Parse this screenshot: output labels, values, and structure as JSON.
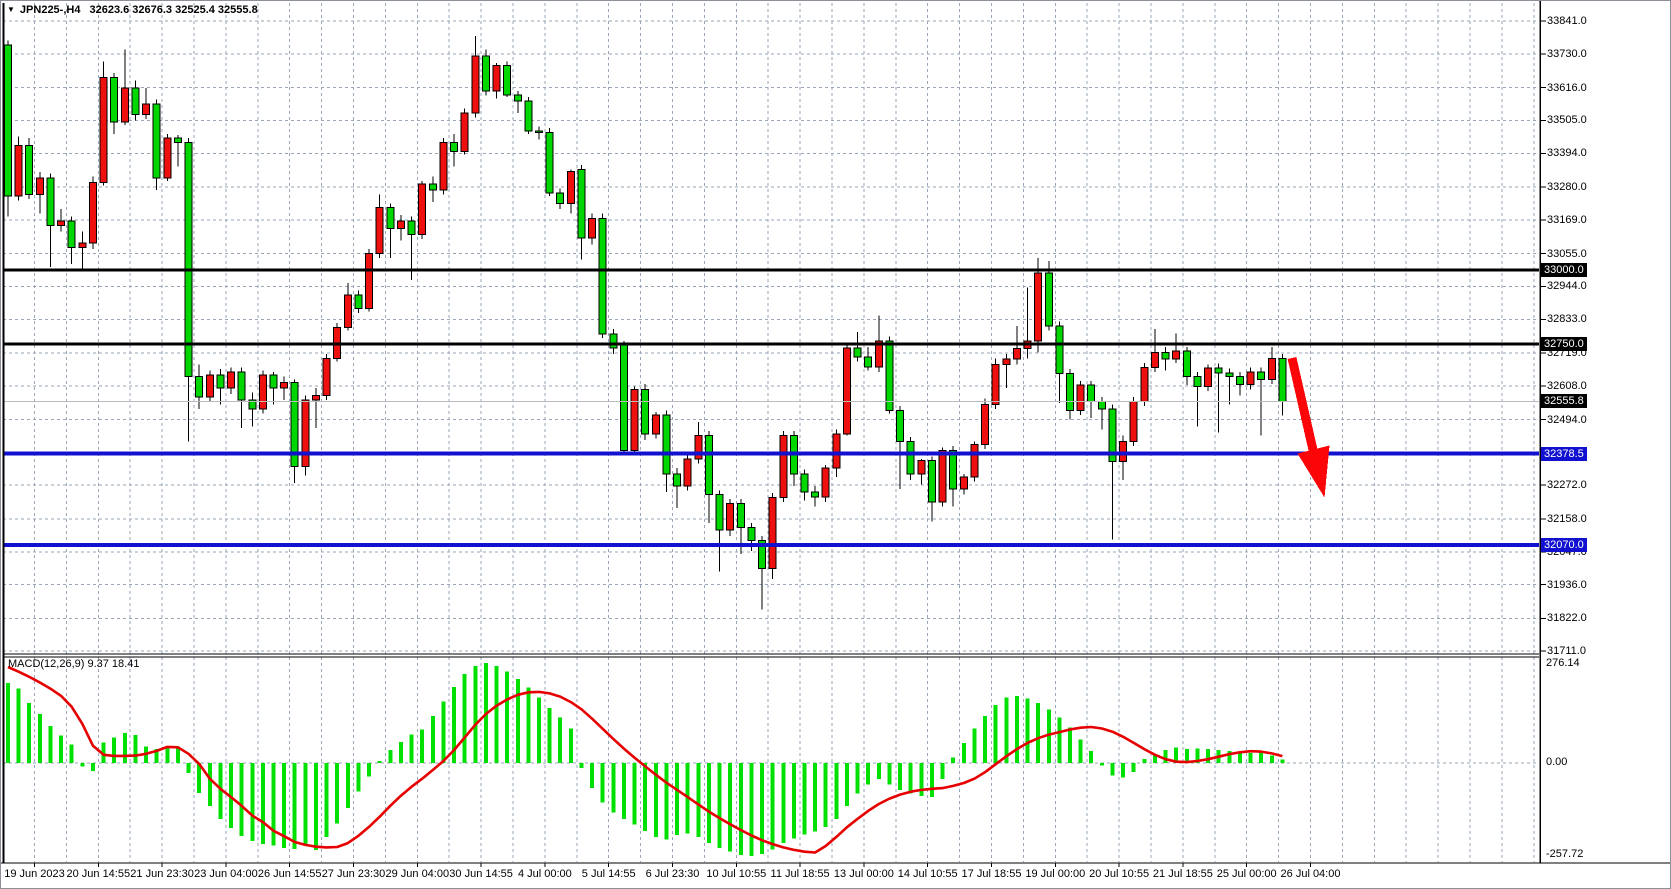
{
  "window": {
    "title_symbol": "JPN225-,H4",
    "title_ohlc": "32623.6 32676.3 32525.4 32555.8",
    "menu_icon": "symbol-dropdown-triangle"
  },
  "chart_data": {
    "type": "candlestick",
    "symbol": "JPN225-",
    "timeframe": "H4",
    "ohlc_display": {
      "open": 32623.6,
      "high": 32676.3,
      "low": 32525.4,
      "close": 32555.8
    },
    "up_color": "#ee0f0f",
    "down_color": "#00d600",
    "grid_color": "#9aa5b8",
    "price_range_visible": [
      31703,
      33902
    ],
    "x_labels": [
      "19 Jun 2023",
      "20 Jun 14:55",
      "21 Jun 23:30",
      "23 Jun 04:00",
      "26 Jun 14:55",
      "27 Jun 23:30",
      "29 Jun 04:00",
      "30 Jun 14:55",
      "4 Jul 00:00",
      "5 Jul 14:55",
      "6 Jul 23:30",
      "10 Jul 10:55",
      "11 Jul 18:55",
      "13 Jul 00:00",
      "14 Jul 10:55",
      "17 Jul 18:55",
      "19 Jul 00:00",
      "20 Jul 10:55",
      "21 Jul 18:55",
      "25 Jul 00:00",
      "26 Jul 04:00"
    ],
    "price_ticks": [
      {
        "p": 33841,
        "t": "33841.0"
      },
      {
        "p": 33730,
        "t": "33730.0"
      },
      {
        "p": 33616,
        "t": "33616.0"
      },
      {
        "p": 33505,
        "t": "33505.0"
      },
      {
        "p": 33394,
        "t": "33394.0"
      },
      {
        "p": 33280,
        "t": "33280.0"
      },
      {
        "p": 33169,
        "t": "33169.0"
      },
      {
        "p": 33055,
        "t": "33055.0"
      },
      {
        "p": 32944,
        "t": "32944.0"
      },
      {
        "p": 32833,
        "t": "32833.0"
      },
      {
        "p": 32719,
        "t": "32719.0"
      },
      {
        "p": 32608,
        "t": "32608.0"
      },
      {
        "p": 32494,
        "t": "32494.0"
      },
      {
        "p": 32272,
        "t": "32272.0"
      },
      {
        "p": 32158,
        "t": "32158.0"
      },
      {
        "p": 32047,
        "t": "32047.0"
      },
      {
        "p": 31936,
        "t": "31936.0"
      },
      {
        "p": 31822,
        "t": "31822.0"
      },
      {
        "p": 31711,
        "t": "31711.0"
      }
    ],
    "price_lines": [
      {
        "p": 33000.0,
        "t": "33000.0",
        "color": "#000000",
        "width": 3,
        "tag": "#000000"
      },
      {
        "p": 32750.0,
        "t": "32750.0",
        "color": "#000000",
        "width": 3,
        "tag": "#000000"
      },
      {
        "p": 32555.8,
        "t": "32555.8",
        "color": "#bcbcbc",
        "width": 1,
        "tag": "#000000"
      },
      {
        "p": 32378.5,
        "t": "32378.5",
        "color": "#1111cf",
        "width": 4,
        "tag": "#1111cf"
      },
      {
        "p": 32070.0,
        "t": "32070.0",
        "color": "#1111cf",
        "width": 4,
        "tag": "#1111cf"
      }
    ],
    "candles": [
      [
        33760,
        33775,
        33180,
        33250
      ],
      [
        33250,
        33450,
        33235,
        33420
      ],
      [
        33420,
        33445,
        33240,
        33255
      ],
      [
        33255,
        33330,
        33190,
        33310
      ],
      [
        33310,
        33325,
        33010,
        33150
      ],
      [
        33150,
        33205,
        33130,
        33165
      ],
      [
        33165,
        33180,
        33020,
        33075
      ],
      [
        33075,
        33130,
        32995,
        33090
      ],
      [
        33090,
        33315,
        33070,
        33295
      ],
      [
        33295,
        33705,
        33285,
        33650
      ],
      [
        33650,
        33665,
        33460,
        33500
      ],
      [
        33500,
        33745,
        33490,
        33615
      ],
      [
        33615,
        33640,
        33505,
        33525
      ],
      [
        33525,
        33615,
        33510,
        33560
      ],
      [
        33560,
        33575,
        33270,
        33310
      ],
      [
        33310,
        33460,
        33300,
        33445
      ],
      [
        33445,
        33455,
        33350,
        33430
      ],
      [
        33430,
        33445,
        32420,
        32640
      ],
      [
        32640,
        32680,
        32530,
        32570
      ],
      [
        32570,
        32660,
        32555,
        32645
      ],
      [
        32645,
        32665,
        32545,
        32600
      ],
      [
        32600,
        32670,
        32580,
        32655
      ],
      [
        32655,
        32670,
        32465,
        32560
      ],
      [
        32560,
        32585,
        32470,
        32530
      ],
      [
        32530,
        32660,
        32515,
        32645
      ],
      [
        32645,
        32655,
        32545,
        32600
      ],
      [
        32600,
        32640,
        32560,
        32620
      ],
      [
        32620,
        32630,
        32280,
        32335
      ],
      [
        32335,
        32575,
        32305,
        32560
      ],
      [
        32560,
        32600,
        32465,
        32575
      ],
      [
        32575,
        32715,
        32560,
        32700
      ],
      [
        32700,
        32820,
        32690,
        32805
      ],
      [
        32805,
        32955,
        32795,
        32915
      ],
      [
        32915,
        32930,
        32855,
        32870
      ],
      [
        32870,
        33070,
        32860,
        33055
      ],
      [
        33055,
        33255,
        33040,
        33210
      ],
      [
        33210,
        33225,
        33040,
        33140
      ],
      [
        33140,
        33185,
        33100,
        33165
      ],
      [
        33165,
        33180,
        32965,
        33120
      ],
      [
        33120,
        33300,
        33105,
        33290
      ],
      [
        33290,
        33315,
        33230,
        33270
      ],
      [
        33270,
        33445,
        33255,
        33430
      ],
      [
        33430,
        33460,
        33350,
        33400
      ],
      [
        33400,
        33545,
        33390,
        33530
      ],
      [
        33530,
        33790,
        33515,
        33723
      ],
      [
        33723,
        33745,
        33590,
        33605
      ],
      [
        33605,
        33700,
        33580,
        33690
      ],
      [
        33690,
        33705,
        33585,
        33591
      ],
      [
        33591,
        33605,
        33530,
        33570
      ],
      [
        33570,
        33585,
        33460,
        33470
      ],
      [
        33470,
        33485,
        33440,
        33465
      ],
      [
        33465,
        33480,
        33250,
        33260
      ],
      [
        33260,
        33275,
        33205,
        33225
      ],
      [
        33225,
        33340,
        33190,
        33333
      ],
      [
        33340,
        33355,
        33035,
        33107
      ],
      [
        33107,
        33190,
        33085,
        33174
      ],
      [
        33174,
        33190,
        32770,
        32783
      ],
      [
        32783,
        32800,
        32715,
        32736
      ],
      [
        32746,
        32760,
        32380,
        32390
      ],
      [
        32390,
        32605,
        32380,
        32595
      ],
      [
        32595,
        32615,
        32425,
        32445
      ],
      [
        32445,
        32520,
        32430,
        32510
      ],
      [
        32510,
        32525,
        32250,
        32310
      ],
      [
        32310,
        32330,
        32195,
        32270
      ],
      [
        32270,
        32375,
        32255,
        32360
      ],
      [
        32360,
        32485,
        32345,
        32440
      ],
      [
        32440,
        32455,
        32145,
        32240
      ],
      [
        32240,
        32255,
        31980,
        32120
      ],
      [
        32120,
        32225,
        32100,
        32210
      ],
      [
        32210,
        32225,
        32040,
        32130
      ],
      [
        32130,
        32145,
        32050,
        32085
      ],
      [
        32085,
        32100,
        31852,
        31990
      ],
      [
        31990,
        32245,
        31955,
        32230
      ],
      [
        32230,
        32455,
        32215,
        32440
      ],
      [
        32440,
        32455,
        32270,
        32310
      ],
      [
        32310,
        32325,
        32220,
        32250
      ],
      [
        32250,
        32270,
        32200,
        32232
      ],
      [
        32232,
        32340,
        32215,
        32330
      ],
      [
        32330,
        32460,
        32300,
        32445
      ],
      [
        32445,
        32750,
        32440,
        32736
      ],
      [
        32736,
        32790,
        32690,
        32705
      ],
      [
        32705,
        32740,
        32660,
        32672
      ],
      [
        32672,
        32845,
        32655,
        32760
      ],
      [
        32760,
        32775,
        32515,
        32525
      ],
      [
        32525,
        32540,
        32260,
        32420
      ],
      [
        32420,
        32435,
        32290,
        32310
      ],
      [
        32310,
        32360,
        32275,
        32355
      ],
      [
        32355,
        32370,
        32150,
        32215
      ],
      [
        32215,
        32400,
        32200,
        32390
      ],
      [
        32390,
        32405,
        32200,
        32260
      ],
      [
        32260,
        32310,
        32240,
        32300
      ],
      [
        32300,
        32420,
        32285,
        32410
      ],
      [
        32410,
        32565,
        32395,
        32545
      ],
      [
        32545,
        32700,
        32530,
        32680
      ],
      [
        32680,
        32715,
        32600,
        32699
      ],
      [
        32699,
        32811,
        32680,
        32735
      ],
      [
        32735,
        32940,
        32700,
        32760
      ],
      [
        32760,
        33040,
        32720,
        32990
      ],
      [
        32990,
        33030,
        32795,
        32810
      ],
      [
        32810,
        32825,
        32550,
        32650
      ],
      [
        32650,
        32665,
        32495,
        32525
      ],
      [
        32525,
        32625,
        32510,
        32610
      ],
      [
        32610,
        32625,
        32500,
        32555
      ],
      [
        32555,
        32570,
        32460,
        32530
      ],
      [
        32530,
        32545,
        32088,
        32352
      ],
      [
        32352,
        32440,
        32290,
        32420
      ],
      [
        32420,
        32570,
        32405,
        32555
      ],
      [
        32555,
        32685,
        32540,
        32670
      ],
      [
        32670,
        32800,
        32655,
        32720
      ],
      [
        32720,
        32740,
        32660,
        32698
      ],
      [
        32698,
        32785,
        32685,
        32725
      ],
      [
        32725,
        32740,
        32610,
        32640
      ],
      [
        32640,
        32655,
        32470,
        32605
      ],
      [
        32605,
        32680,
        32590,
        32668
      ],
      [
        32668,
        32683,
        32450,
        32652
      ],
      [
        32652,
        32667,
        32545,
        32640
      ],
      [
        32640,
        32655,
        32575,
        32612
      ],
      [
        32612,
        32670,
        32595,
        32655
      ],
      [
        32655,
        32670,
        32440,
        32630
      ],
      [
        32630,
        32740,
        32615,
        32700
      ],
      [
        32700,
        32715,
        32508,
        32555.8
      ]
    ],
    "macd": {
      "label": "MACD(12,26,9) 9.37 18.41",
      "params": "12,26,9",
      "value": 9.37,
      "signal_value": 18.41,
      "scale_labels": [
        "276.14",
        "0.00",
        "-257.72"
      ],
      "scale_max": 276.14,
      "scale_min": -257.72,
      "bar_color": "#00e000",
      "line_color": "#e60000",
      "histogram": [
        221,
        205,
        166,
        135,
        102,
        75,
        50,
        -10,
        -22,
        56,
        70,
        82,
        77,
        45,
        38,
        42,
        45,
        -28,
        -83,
        -119,
        -155,
        -180,
        -202,
        -216,
        -224,
        -229,
        -235,
        -238,
        -229,
        -241,
        -205,
        -168,
        -125,
        -80,
        -38,
        5,
        35,
        58,
        78,
        92,
        130,
        170,
        210,
        245,
        268,
        276,
        268,
        252,
        232,
        208,
        180,
        152,
        125,
        95,
        -15,
        -70,
        -110,
        -138,
        -155,
        -170,
        -188,
        -205,
        -212,
        -200,
        -195,
        -205,
        -222,
        -235,
        -245,
        -255,
        -257.7,
        -252,
        -240,
        -222,
        -210,
        -198,
        -190,
        -178,
        -155,
        -120,
        -85,
        -60,
        -45,
        -60,
        -75,
        -85,
        -92,
        -95,
        -45,
        15,
        55,
        95,
        130,
        160,
        180,
        185,
        178,
        165,
        148,
        125,
        98,
        65,
        32,
        -8,
        -35,
        -40,
        -25,
        10,
        25,
        36,
        42,
        38,
        40,
        38,
        36,
        32,
        30,
        27,
        30,
        20,
        9.37
      ],
      "signal": [
        265,
        252,
        238,
        222,
        205,
        185,
        155,
        108,
        47,
        22,
        19,
        19,
        20,
        25,
        33,
        44,
        43,
        25,
        -3,
        -44,
        -72,
        -95,
        -119,
        -146,
        -164,
        -188,
        -203,
        -219,
        -227,
        -232,
        -234,
        -233,
        -222,
        -202,
        -177,
        -149,
        -119,
        -91,
        -66,
        -44,
        -20,
        5,
        35,
        70,
        105,
        135,
        158,
        175,
        188,
        195,
        196,
        192,
        183,
        168,
        148,
        122,
        94,
        66,
        39,
        14,
        -10,
        -33,
        -55,
        -75,
        -95,
        -115,
        -135,
        -153,
        -170,
        -186,
        -201,
        -214,
        -225,
        -234,
        -241,
        -246,
        -248,
        -230,
        -205,
        -178,
        -155,
        -133,
        -114,
        -99,
        -88,
        -80,
        -75,
        -72,
        -70,
        -64,
        -56,
        -44,
        -26,
        -4,
        18,
        38,
        55,
        68,
        78,
        85,
        92,
        97,
        99,
        95,
        86,
        72,
        55,
        38,
        22,
        10,
        3,
        2,
        5,
        10,
        17,
        24,
        29,
        32,
        31,
        26,
        18.41
      ]
    },
    "annotation": {
      "shape": "arrow",
      "direction": "down-right",
      "color": "#fb0509"
    }
  }
}
